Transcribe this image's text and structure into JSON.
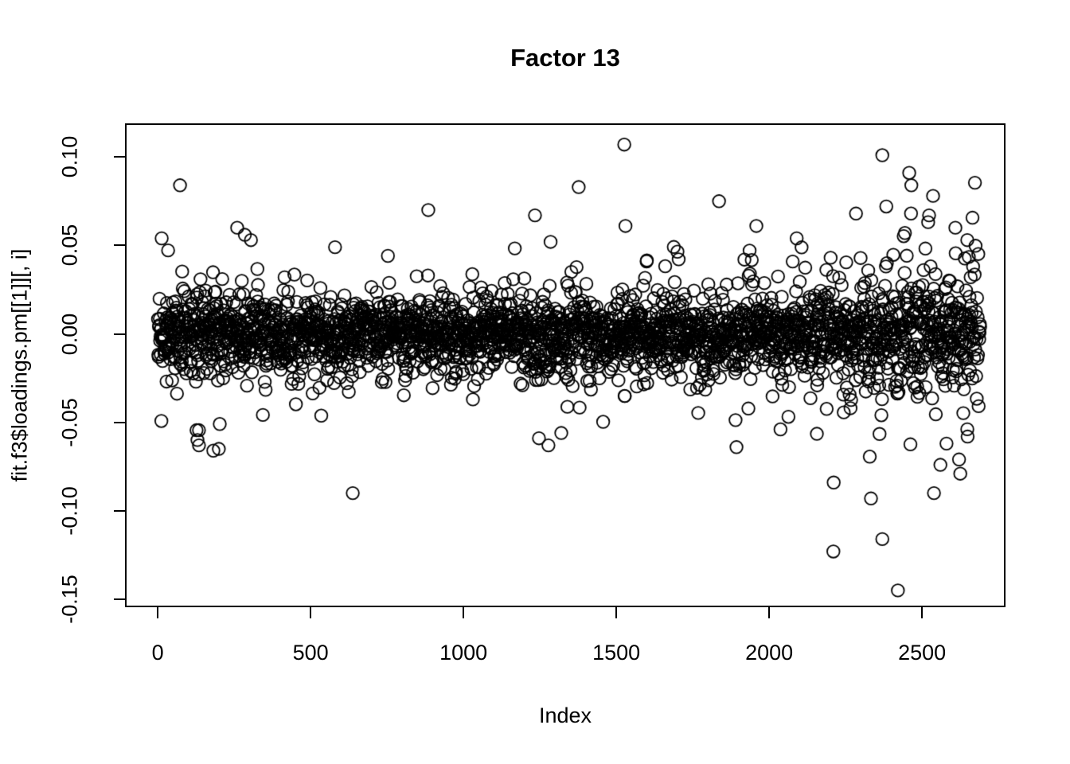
{
  "figure": {
    "background_color": "#ffffff",
    "foreground_color": "#000000"
  },
  "chart_data": {
    "type": "scatter",
    "title": "Factor 13",
    "xlabel": "Index",
    "ylabel": "fit.f3$loadings.pm[[1]][, i]",
    "xlim": [
      -107,
      2773
    ],
    "ylim": [
      -0.1545,
      0.119
    ],
    "grid": false,
    "legend": null,
    "marker": {
      "shape": "open-circle",
      "radius_px": 7.8,
      "stroke_px": 1.8,
      "color": "#000000"
    },
    "x_ticks": {
      "values": [
        0,
        500,
        1000,
        1500,
        2000,
        2500
      ],
      "labels": [
        "0",
        "500",
        "1000",
        "1500",
        "2000",
        "2500"
      ]
    },
    "y_ticks": {
      "values": [
        0.1,
        0.05,
        0.0,
        -0.05,
        -0.1,
        -0.15
      ],
      "labels": [
        "0.10",
        "0.05",
        "0.00",
        "-0.05",
        "-0.10",
        "-0.15"
      ]
    },
    "series_description": "Approximately 2690 factor-loading values plotted against variable index; dense band centered on 0 with core spread about ±0.02, moderate halo to ±0.05, and increased spread for index > 1900.",
    "cloud": {
      "n": 2690,
      "seed": 1337,
      "x_start": 1,
      "x_step": 1,
      "mixture": [
        {
          "w": 0.68,
          "sd": 0.0095
        },
        {
          "w": 0.27,
          "sd": 0.016
        },
        {
          "w": 0.05,
          "sd": 0.026
        }
      ],
      "widen_right": {
        "start": 1900,
        "max_factor": 1.8
      },
      "widen_left": {
        "end": 300,
        "max_factor": 1.3
      },
      "clamp_abs": 0.05
    },
    "outliers": [
      [
        13,
        0.054
      ],
      [
        73,
        0.084
      ],
      [
        260,
        0.06
      ],
      [
        285,
        0.056
      ],
      [
        305,
        0.053
      ],
      [
        580,
        0.049
      ],
      [
        885,
        0.07
      ],
      [
        1234,
        0.067
      ],
      [
        1285,
        0.052
      ],
      [
        1377,
        0.083
      ],
      [
        1526,
        0.107
      ],
      [
        1530,
        0.061
      ],
      [
        1836,
        0.075
      ],
      [
        1958,
        0.061
      ],
      [
        2090,
        0.054
      ],
      [
        2370,
        0.101
      ],
      [
        2383,
        0.072
      ],
      [
        2458,
        0.091
      ],
      [
        2465,
        0.084
      ],
      [
        2523,
        0.067
      ],
      [
        2536,
        0.078
      ],
      [
        2609,
        0.06
      ],
      [
        2648,
        0.053
      ],
      [
        130,
        -0.06
      ],
      [
        135,
        -0.063
      ],
      [
        182,
        -0.066
      ],
      [
        200,
        -0.065
      ],
      [
        638,
        -0.09
      ],
      [
        1247,
        -0.059
      ],
      [
        1278,
        -0.063
      ],
      [
        1320,
        -0.056
      ],
      [
        1893,
        -0.064
      ],
      [
        2210,
        -0.123
      ],
      [
        2211,
        -0.084
      ],
      [
        2333,
        -0.093
      ],
      [
        2370,
        -0.116
      ],
      [
        2421,
        -0.145
      ],
      [
        2539,
        -0.09
      ],
      [
        2560,
        -0.074
      ],
      [
        2580,
        -0.062
      ]
    ]
  }
}
